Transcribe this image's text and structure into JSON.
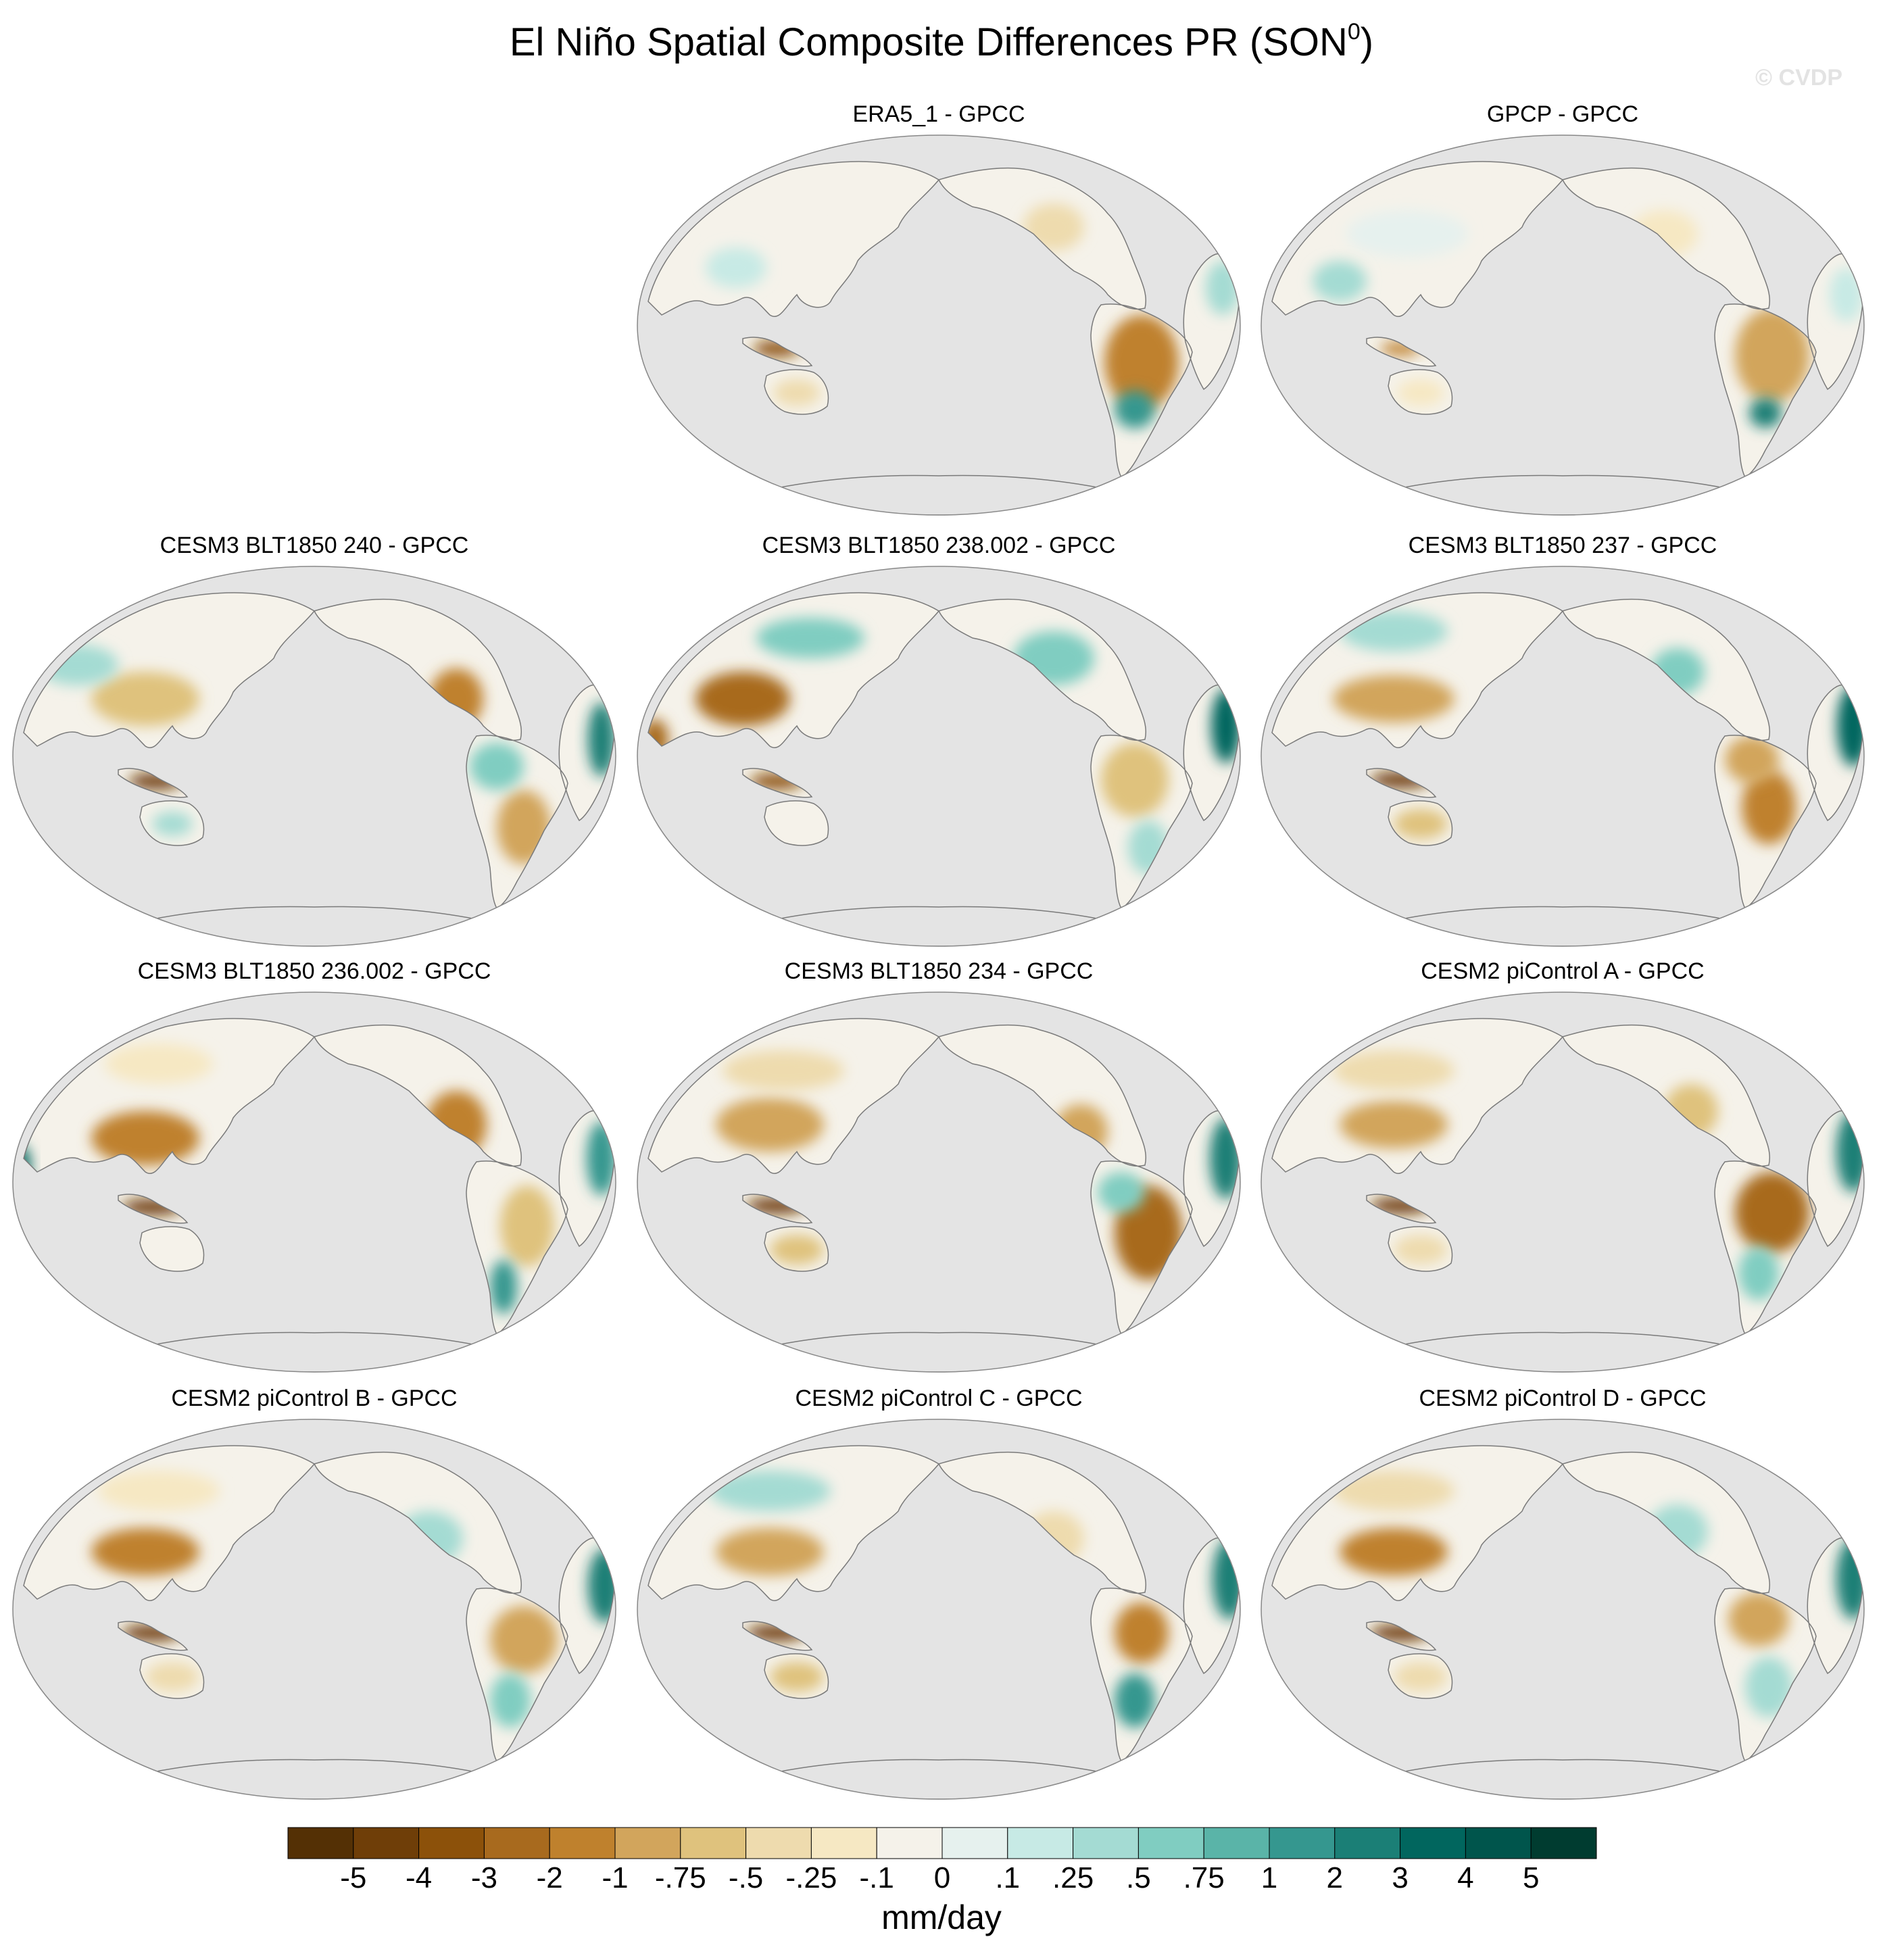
{
  "figure": {
    "title_main": "El Niño Spatial Composite Differences PR (SON",
    "title_sup": "0",
    "title_close": ")",
    "watermark": "© CVDP"
  },
  "panels": [
    {
      "title": "ERA5_1 - GPCC"
    },
    {
      "title": "GPCP - GPCC"
    },
    {
      "title": "CESM3 BLT1850 240 - GPCC"
    },
    {
      "title": "CESM3 BLT1850 238.002 - GPCC"
    },
    {
      "title": "CESM3 BLT1850 237 - GPCC"
    },
    {
      "title": "CESM3 BLT1850 236.002 - GPCC"
    },
    {
      "title": "CESM3 BLT1850 234 - GPCC"
    },
    {
      "title": "CESM2 piControl A - GPCC"
    },
    {
      "title": "CESM2 piControl B - GPCC"
    },
    {
      "title": "CESM2 piControl C - GPCC"
    },
    {
      "title": "CESM2 piControl D - GPCC"
    }
  ],
  "colorbar": {
    "units": "mm/day",
    "tick_labels": [
      "-5",
      "-4",
      "-3",
      "-2",
      "-1",
      "-.75",
      "-.5",
      "-.25",
      "-.1",
      "0",
      ".1",
      ".25",
      ".5",
      ".75",
      "1",
      "2",
      "3",
      "4",
      "5"
    ],
    "colors": [
      "#543005",
      "#6f3e08",
      "#8c510a",
      "#a86a1e",
      "#bf812d",
      "#d2a55c",
      "#dfc27d",
      "#eedbae",
      "#f6e8c3",
      "#f5f2ea",
      "#e6f1ee",
      "#c7eae5",
      "#a4dbd3",
      "#80cdc1",
      "#5ab4a8",
      "#35978f",
      "#1b7f76",
      "#01665e",
      "#00554c",
      "#003c30"
    ]
  },
  "map_colors": {
    "ocean": "#e4e4e4",
    "border": "#888888",
    "coast": "#7a7a7a"
  }
}
